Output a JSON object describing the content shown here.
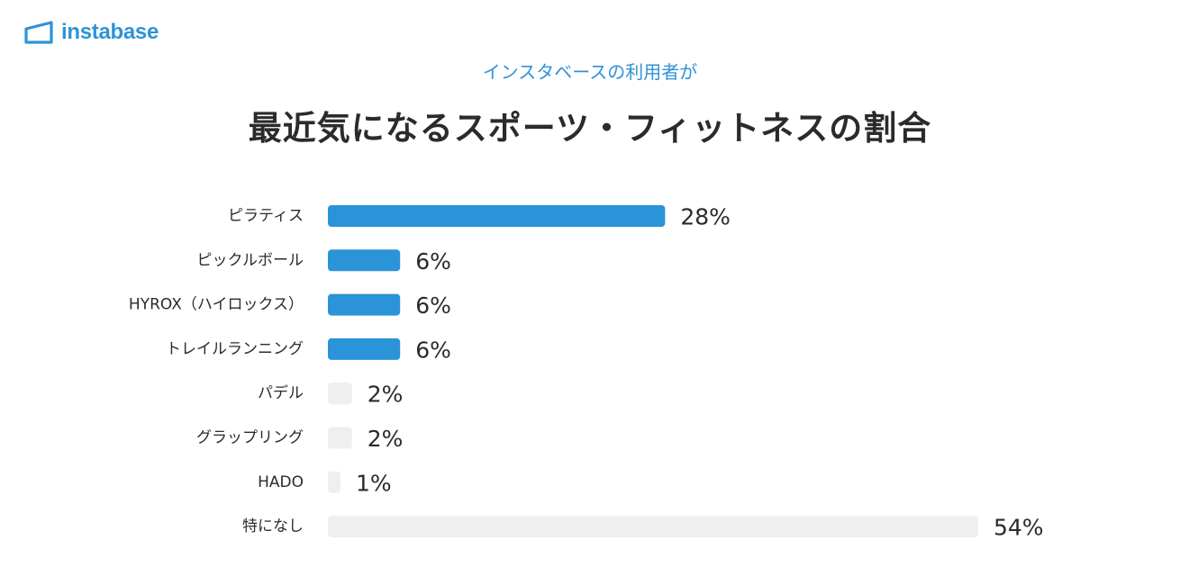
{
  "brand": {
    "name": "instabase",
    "logo_icon": "house-outline-icon",
    "color": "#2e93d6"
  },
  "chart_data": {
    "type": "bar",
    "orientation": "horizontal",
    "subtitle": "インスタベースの利用者が",
    "title": "最近気になるスポーツ・フィットネスの割合",
    "categories": [
      "ピラティス",
      "ピックルボール",
      "HYROX（ハイロックス）",
      "トレイルランニング",
      "パデル",
      "グラップリング",
      "HADO",
      "特になし"
    ],
    "values": [
      28,
      6,
      6,
      6,
      2,
      2,
      1,
      54
    ],
    "value_labels": [
      "28%",
      "6%",
      "6%",
      "6%",
      "2%",
      "2%",
      "1%",
      "54%"
    ],
    "highlighted": [
      true,
      true,
      true,
      true,
      false,
      false,
      false,
      false
    ],
    "unit": "%",
    "xlim": [
      0,
      54
    ],
    "colors": {
      "highlight": "#2b93d8",
      "muted": "#efefef"
    },
    "grid": false,
    "legend": "none"
  }
}
